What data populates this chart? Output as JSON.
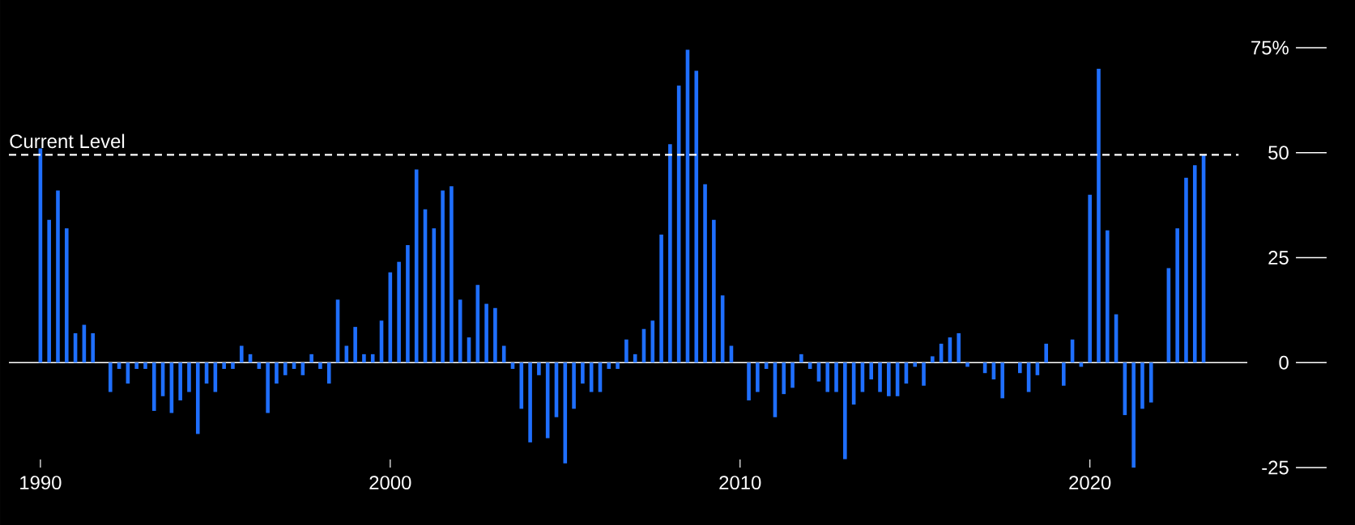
{
  "chart_data": {
    "type": "bar",
    "color": "#1f6fff",
    "x": [
      1990,
      1990.25,
      1990.5,
      1990.75,
      1991,
      1991.25,
      1991.5,
      1991.75,
      1992,
      1992.25,
      1992.5,
      1992.75,
      1993,
      1993.25,
      1993.5,
      1993.75,
      1994,
      1994.25,
      1994.5,
      1994.75,
      1995,
      1995.25,
      1995.5,
      1995.75,
      1996,
      1996.25,
      1996.5,
      1996.75,
      1997,
      1997.25,
      1997.5,
      1997.75,
      1998,
      1998.25,
      1998.5,
      1998.75,
      1999,
      1999.25,
      1999.5,
      1999.75,
      2000,
      2000.25,
      2000.5,
      2000.75,
      2001,
      2001.25,
      2001.5,
      2001.75,
      2002,
      2002.25,
      2002.5,
      2002.75,
      2003,
      2003.25,
      2003.5,
      2003.75,
      2004,
      2004.25,
      2004.5,
      2004.75,
      2005,
      2005.25,
      2005.5,
      2005.75,
      2006,
      2006.25,
      2006.5,
      2006.75,
      2007,
      2007.25,
      2007.5,
      2007.75,
      2008,
      2008.25,
      2008.5,
      2008.75,
      2009,
      2009.25,
      2009.5,
      2009.75,
      2010,
      2010.25,
      2010.5,
      2010.75,
      2011,
      2011.25,
      2011.5,
      2011.75,
      2012,
      2012.25,
      2012.5,
      2012.75,
      2013,
      2013.25,
      2013.5,
      2013.75,
      2014,
      2014.25,
      2014.5,
      2014.75,
      2015,
      2015.25,
      2015.5,
      2015.75,
      2016,
      2016.25,
      2016.5,
      2016.75,
      2017,
      2017.25,
      2017.5,
      2017.75,
      2018,
      2018.25,
      2018.5,
      2018.75,
      2019,
      2019.25,
      2019.5,
      2019.75,
      2020,
      2020.25,
      2020.5,
      2020.75,
      2021,
      2021.25,
      2021.5,
      2021.75,
      2022,
      2022.25,
      2022.5,
      2022.75,
      2023,
      2023.25
    ],
    "values": [
      51,
      34,
      41,
      32,
      7,
      9,
      7,
      0,
      -7,
      -1.5,
      -5,
      -1.5,
      -1.5,
      -11.5,
      -8,
      -12,
      -9,
      -7,
      -17,
      -5,
      -7,
      -1.5,
      -1.5,
      4,
      2,
      -1.5,
      -12,
      -5,
      -3,
      -1.5,
      -3,
      2,
      -1.5,
      -5,
      15,
      4,
      8.5,
      2,
      2,
      10,
      21.5,
      24,
      28,
      46,
      36.5,
      32,
      41,
      42,
      15,
      6,
      18.5,
      14,
      13,
      4,
      -1.5,
      -11,
      -19,
      -3,
      -18,
      -13,
      -24,
      -11,
      -5,
      -7,
      -7,
      -1.5,
      -1.5,
      5.5,
      2,
      8,
      10,
      30.5,
      52,
      66,
      74.5,
      69.5,
      42.5,
      34,
      16,
      4,
      0,
      -9,
      -7,
      -1.5,
      -13,
      -7.5,
      -6,
      2,
      -1.5,
      -4.5,
      -7,
      -7,
      -23,
      -10,
      -7,
      -4,
      -7,
      -8,
      -8,
      -5,
      -1,
      -5.5,
      1.5,
      4.5,
      6,
      7,
      -1,
      0,
      -2.5,
      -4,
      -8.5,
      0,
      -2.5,
      -7,
      -3,
      4.5,
      0,
      -5.5,
      5.5,
      -1,
      40,
      70,
      31.5,
      11.5,
      -12.5,
      -25,
      -11,
      -9.5,
      0,
      22.5,
      32,
      44,
      47,
      49.5
    ],
    "xlim": [
      1989.1,
      2024.5
    ],
    "ylim": [
      -25,
      75
    ],
    "xticks": [
      1990,
      2000,
      2010,
      2020
    ],
    "yticks": [
      -25,
      0,
      25,
      50,
      {
        "value": 75,
        "label": "75%"
      }
    ],
    "ref_lines": [
      {
        "axis": "y",
        "value": 49.5,
        "label": "Current Level",
        "color": "#ffffff",
        "line_style": "dashed"
      }
    ]
  }
}
